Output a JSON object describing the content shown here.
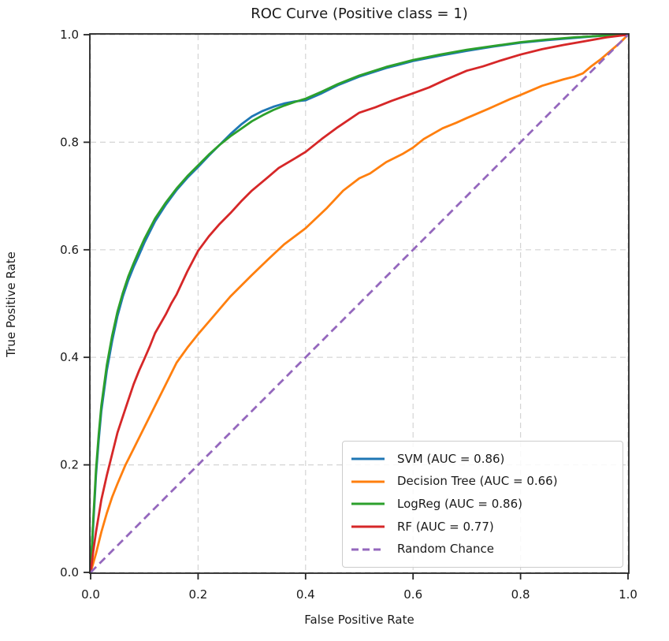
{
  "chart_data": {
    "type": "line",
    "title": "ROC Curve (Positive class = 1)",
    "xlabel": "False Positive Rate",
    "ylabel": "True Positive Rate",
    "xlim": [
      0.0,
      1.0
    ],
    "ylim": [
      0.0,
      1.0
    ],
    "xticks": [
      "0.0",
      "0.2",
      "0.4",
      "0.6",
      "0.8",
      "1.0"
    ],
    "yticks": [
      "0.0",
      "0.2",
      "0.4",
      "0.6",
      "0.8",
      "1.0"
    ],
    "grid": true,
    "grid_style": "dashed",
    "legend_position": "lower right",
    "colors": {
      "svm": "#1f77b4",
      "decision_tree": "#ff7f0e",
      "logreg": "#2ca02c",
      "rf": "#d62728",
      "random_chance": "#9467bd",
      "grid": "#d4d4d4",
      "spine": "#262626",
      "text": "#1a1a1a"
    },
    "series": [
      {
        "id": "svm",
        "name": "SVM (AUC = 0.86)",
        "auc": 0.86,
        "color": "#1f77b4",
        "style": "solid",
        "points": [
          [
            0,
            0
          ],
          [
            0.003,
            0.05
          ],
          [
            0.005,
            0.09
          ],
          [
            0.008,
            0.145
          ],
          [
            0.01,
            0.18
          ],
          [
            0.015,
            0.245
          ],
          [
            0.02,
            0.3
          ],
          [
            0.03,
            0.375
          ],
          [
            0.04,
            0.43
          ],
          [
            0.05,
            0.477
          ],
          [
            0.06,
            0.513
          ],
          [
            0.07,
            0.543
          ],
          [
            0.08,
            0.568
          ],
          [
            0.09,
            0.59
          ],
          [
            0.1,
            0.613
          ],
          [
            0.12,
            0.653
          ],
          [
            0.14,
            0.684
          ],
          [
            0.16,
            0.711
          ],
          [
            0.18,
            0.734
          ],
          [
            0.2,
            0.754
          ],
          [
            0.22,
            0.775
          ],
          [
            0.24,
            0.795
          ],
          [
            0.26,
            0.815
          ],
          [
            0.28,
            0.833
          ],
          [
            0.3,
            0.848
          ],
          [
            0.32,
            0.858
          ],
          [
            0.34,
            0.866
          ],
          [
            0.36,
            0.872
          ],
          [
            0.38,
            0.876
          ],
          [
            0.4,
            0.878
          ],
          [
            0.43,
            0.891
          ],
          [
            0.46,
            0.906
          ],
          [
            0.5,
            0.922
          ],
          [
            0.55,
            0.938
          ],
          [
            0.6,
            0.951
          ],
          [
            0.65,
            0.961
          ],
          [
            0.7,
            0.97
          ],
          [
            0.75,
            0.978
          ],
          [
            0.8,
            0.985
          ],
          [
            0.85,
            0.99
          ],
          [
            0.9,
            0.994
          ],
          [
            0.95,
            0.998
          ],
          [
            1,
            1
          ]
        ]
      },
      {
        "id": "decision_tree",
        "name": "Decision Tree (AUC = 0.66)",
        "auc": 0.66,
        "color": "#ff7f0e",
        "style": "solid",
        "points": [
          [
            0,
            0
          ],
          [
            0.01,
            0.035
          ],
          [
            0.02,
            0.075
          ],
          [
            0.03,
            0.11
          ],
          [
            0.04,
            0.14
          ],
          [
            0.05,
            0.165
          ],
          [
            0.065,
            0.2
          ],
          [
            0.08,
            0.23
          ],
          [
            0.1,
            0.27
          ],
          [
            0.12,
            0.31
          ],
          [
            0.14,
            0.35
          ],
          [
            0.16,
            0.39
          ],
          [
            0.18,
            0.418
          ],
          [
            0.2,
            0.443
          ],
          [
            0.23,
            0.478
          ],
          [
            0.26,
            0.513
          ],
          [
            0.3,
            0.553
          ],
          [
            0.33,
            0.582
          ],
          [
            0.36,
            0.61
          ],
          [
            0.4,
            0.64
          ],
          [
            0.44,
            0.678
          ],
          [
            0.47,
            0.71
          ],
          [
            0.5,
            0.733
          ],
          [
            0.52,
            0.742
          ],
          [
            0.55,
            0.763
          ],
          [
            0.58,
            0.778
          ],
          [
            0.6,
            0.79
          ],
          [
            0.62,
            0.806
          ],
          [
            0.655,
            0.826
          ],
          [
            0.68,
            0.836
          ],
          [
            0.7,
            0.845
          ],
          [
            0.74,
            0.862
          ],
          [
            0.78,
            0.88
          ],
          [
            0.8,
            0.888
          ],
          [
            0.84,
            0.905
          ],
          [
            0.88,
            0.917
          ],
          [
            0.9,
            0.922
          ],
          [
            0.916,
            0.928
          ],
          [
            0.93,
            0.94
          ],
          [
            0.95,
            0.955
          ],
          [
            0.97,
            0.972
          ],
          [
            0.985,
            0.985
          ],
          [
            1,
            1
          ]
        ]
      },
      {
        "id": "logreg",
        "name": "LogReg (AUC = 0.86)",
        "auc": 0.86,
        "color": "#2ca02c",
        "style": "solid",
        "points": [
          [
            0,
            0
          ],
          [
            0.003,
            0.06
          ],
          [
            0.005,
            0.1
          ],
          [
            0.008,
            0.155
          ],
          [
            0.01,
            0.19
          ],
          [
            0.015,
            0.255
          ],
          [
            0.02,
            0.31
          ],
          [
            0.03,
            0.385
          ],
          [
            0.04,
            0.44
          ],
          [
            0.05,
            0.485
          ],
          [
            0.06,
            0.52
          ],
          [
            0.07,
            0.55
          ],
          [
            0.08,
            0.575
          ],
          [
            0.09,
            0.598
          ],
          [
            0.1,
            0.62
          ],
          [
            0.12,
            0.658
          ],
          [
            0.14,
            0.688
          ],
          [
            0.16,
            0.714
          ],
          [
            0.18,
            0.737
          ],
          [
            0.2,
            0.757
          ],
          [
            0.22,
            0.777
          ],
          [
            0.24,
            0.795
          ],
          [
            0.26,
            0.811
          ],
          [
            0.28,
            0.825
          ],
          [
            0.3,
            0.839
          ],
          [
            0.32,
            0.85
          ],
          [
            0.34,
            0.86
          ],
          [
            0.36,
            0.868
          ],
          [
            0.38,
            0.875
          ],
          [
            0.4,
            0.881
          ],
          [
            0.43,
            0.894
          ],
          [
            0.46,
            0.908
          ],
          [
            0.5,
            0.924
          ],
          [
            0.55,
            0.94
          ],
          [
            0.6,
            0.953
          ],
          [
            0.65,
            0.963
          ],
          [
            0.7,
            0.972
          ],
          [
            0.75,
            0.979
          ],
          [
            0.8,
            0.986
          ],
          [
            0.85,
            0.991
          ],
          [
            0.9,
            0.995
          ],
          [
            0.95,
            0.998
          ],
          [
            1,
            1
          ]
        ]
      },
      {
        "id": "rf",
        "name": "RF (AUC = 0.77)",
        "auc": 0.77,
        "color": "#d62728",
        "style": "solid",
        "points": [
          [
            0,
            0
          ],
          [
            0.005,
            0.04
          ],
          [
            0.01,
            0.075
          ],
          [
            0.02,
            0.135
          ],
          [
            0.03,
            0.18
          ],
          [
            0.035,
            0.2
          ],
          [
            0.05,
            0.26
          ],
          [
            0.06,
            0.29
          ],
          [
            0.07,
            0.32
          ],
          [
            0.08,
            0.35
          ],
          [
            0.09,
            0.375
          ],
          [
            0.1,
            0.397
          ],
          [
            0.11,
            0.42
          ],
          [
            0.12,
            0.445
          ],
          [
            0.14,
            0.48
          ],
          [
            0.15,
            0.5
          ],
          [
            0.16,
            0.517
          ],
          [
            0.18,
            0.56
          ],
          [
            0.2,
            0.598
          ],
          [
            0.22,
            0.625
          ],
          [
            0.24,
            0.648
          ],
          [
            0.26,
            0.668
          ],
          [
            0.28,
            0.69
          ],
          [
            0.3,
            0.71
          ],
          [
            0.33,
            0.735
          ],
          [
            0.35,
            0.752
          ],
          [
            0.38,
            0.77
          ],
          [
            0.4,
            0.782
          ],
          [
            0.43,
            0.806
          ],
          [
            0.46,
            0.828
          ],
          [
            0.5,
            0.855
          ],
          [
            0.53,
            0.865
          ],
          [
            0.56,
            0.877
          ],
          [
            0.6,
            0.891
          ],
          [
            0.63,
            0.902
          ],
          [
            0.66,
            0.916
          ],
          [
            0.7,
            0.933
          ],
          [
            0.73,
            0.941
          ],
          [
            0.76,
            0.951
          ],
          [
            0.8,
            0.963
          ],
          [
            0.84,
            0.973
          ],
          [
            0.88,
            0.981
          ],
          [
            0.92,
            0.988
          ],
          [
            0.96,
            0.995
          ],
          [
            1,
            1
          ]
        ]
      },
      {
        "id": "random_chance",
        "name": "Random Chance",
        "color": "#9467bd",
        "style": "dashed",
        "points": [
          [
            0,
            0
          ],
          [
            1,
            1
          ]
        ]
      }
    ]
  }
}
